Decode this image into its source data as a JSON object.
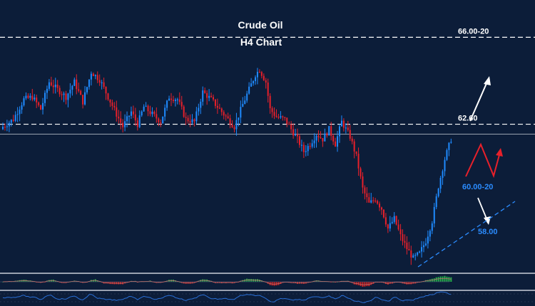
{
  "chart_data": {
    "type": "candlestick",
    "title": "Crude Oil",
    "subtitle": "H4 Chart",
    "background": "#0c1d39",
    "up_color": "#1f8bff",
    "down_color": "#e8202a",
    "price_range": [
      56.6,
      67.6
    ],
    "levels": [
      {
        "value": 66.1,
        "label": "66.00-20",
        "color": "#ffffff",
        "style": "dashed"
      },
      {
        "value": 62.6,
        "label": "62.60",
        "color": "#ffffff",
        "style": "dashed"
      },
      {
        "value": 62.2,
        "label": "",
        "color": "#c9cfd9",
        "style": "solid"
      }
    ],
    "annotations": [
      {
        "text": "60.00-20",
        "color": "#2b8cff"
      },
      {
        "text": "58.00",
        "color": "#2b8cff"
      }
    ],
    "scenarios": {
      "bullish_arrow_color": "#ffffff",
      "zigzag_color": "#e8202a",
      "bearish_arrow_color": "#ffffff",
      "trendline_color": "#2b8cff"
    },
    "indicators": {
      "oscillator": {
        "positive_color": "#25b04a",
        "negative_color": "#d42020",
        "signal_color": "#c07070"
      },
      "rsi": {
        "line_color": "#2a70d8"
      }
    },
    "waypoints": [
      [
        0,
        62.5
      ],
      [
        5,
        62.8
      ],
      [
        10,
        63.6
      ],
      [
        14,
        63.7
      ],
      [
        18,
        63.2
      ],
      [
        22,
        64.3
      ],
      [
        26,
        64.0
      ],
      [
        30,
        63.7
      ],
      [
        34,
        64.3
      ],
      [
        38,
        63.5
      ],
      [
        42,
        64.7
      ],
      [
        46,
        64.4
      ],
      [
        50,
        63.7
      ],
      [
        54,
        63.0
      ],
      [
        57,
        62.5
      ],
      [
        61,
        63.1
      ],
      [
        64,
        62.6
      ],
      [
        67,
        63.3
      ],
      [
        71,
        63.0
      ],
      [
        75,
        62.7
      ],
      [
        79,
        63.7
      ],
      [
        83,
        63.6
      ],
      [
        87,
        62.8
      ],
      [
        91,
        62.7
      ],
      [
        95,
        63.9
      ],
      [
        99,
        63.6
      ],
      [
        103,
        63.2
      ],
      [
        107,
        62.8
      ],
      [
        110,
        62.5
      ],
      [
        114,
        63.4
      ],
      [
        118,
        64.2
      ],
      [
        120,
        64.6
      ],
      [
        122,
        64.8
      ],
      [
        125,
        64.3
      ],
      [
        127,
        63.2
      ],
      [
        130,
        62.9
      ],
      [
        134,
        62.8
      ],
      [
        137,
        62.4
      ],
      [
        140,
        62.0
      ],
      [
        143,
        61.5
      ],
      [
        146,
        61.8
      ],
      [
        149,
        62.2
      ],
      [
        152,
        62.0
      ],
      [
        155,
        62.4
      ],
      [
        158,
        61.8
      ],
      [
        161,
        62.7
      ],
      [
        163,
        62.4
      ],
      [
        165,
        62.1
      ],
      [
        168,
        61.3
      ],
      [
        171,
        60.0
      ],
      [
        174,
        59.4
      ],
      [
        177,
        59.6
      ],
      [
        180,
        59.2
      ],
      [
        183,
        58.4
      ],
      [
        186,
        58.8
      ],
      [
        189,
        58.1
      ],
      [
        192,
        57.6
      ],
      [
        195,
        57.2
      ],
      [
        198,
        57.4
      ],
      [
        201,
        57.9
      ],
      [
        204,
        58.7
      ],
      [
        207,
        60.1
      ],
      [
        210,
        61.2
      ],
      [
        213,
        62.0
      ]
    ]
  }
}
